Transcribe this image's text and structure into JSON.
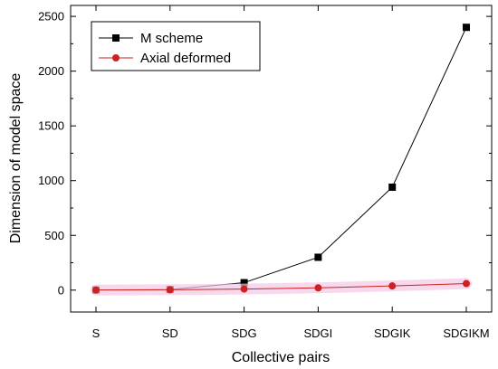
{
  "chart_data": {
    "type": "line",
    "xlabel": "Collective pairs",
    "ylabel": "Dimension of model space",
    "categories": [
      "S",
      "SD",
      "SDG",
      "SDGI",
      "SDGIK",
      "SDGIKM"
    ],
    "ylim": [
      -200,
      2600
    ],
    "yticks": [
      0,
      500,
      1000,
      1500,
      2000,
      2500
    ],
    "grid": false,
    "legend_position": "top-left",
    "series": [
      {
        "name": "M scheme",
        "values": [
          1,
          5,
          68,
          300,
          940,
          2400
        ],
        "color": "#000000",
        "marker": "square"
      },
      {
        "name": "Axial deformed",
        "values": [
          1,
          3,
          10,
          21,
          38,
          60
        ],
        "color": "#cc2222",
        "marker": "circle"
      }
    ]
  }
}
